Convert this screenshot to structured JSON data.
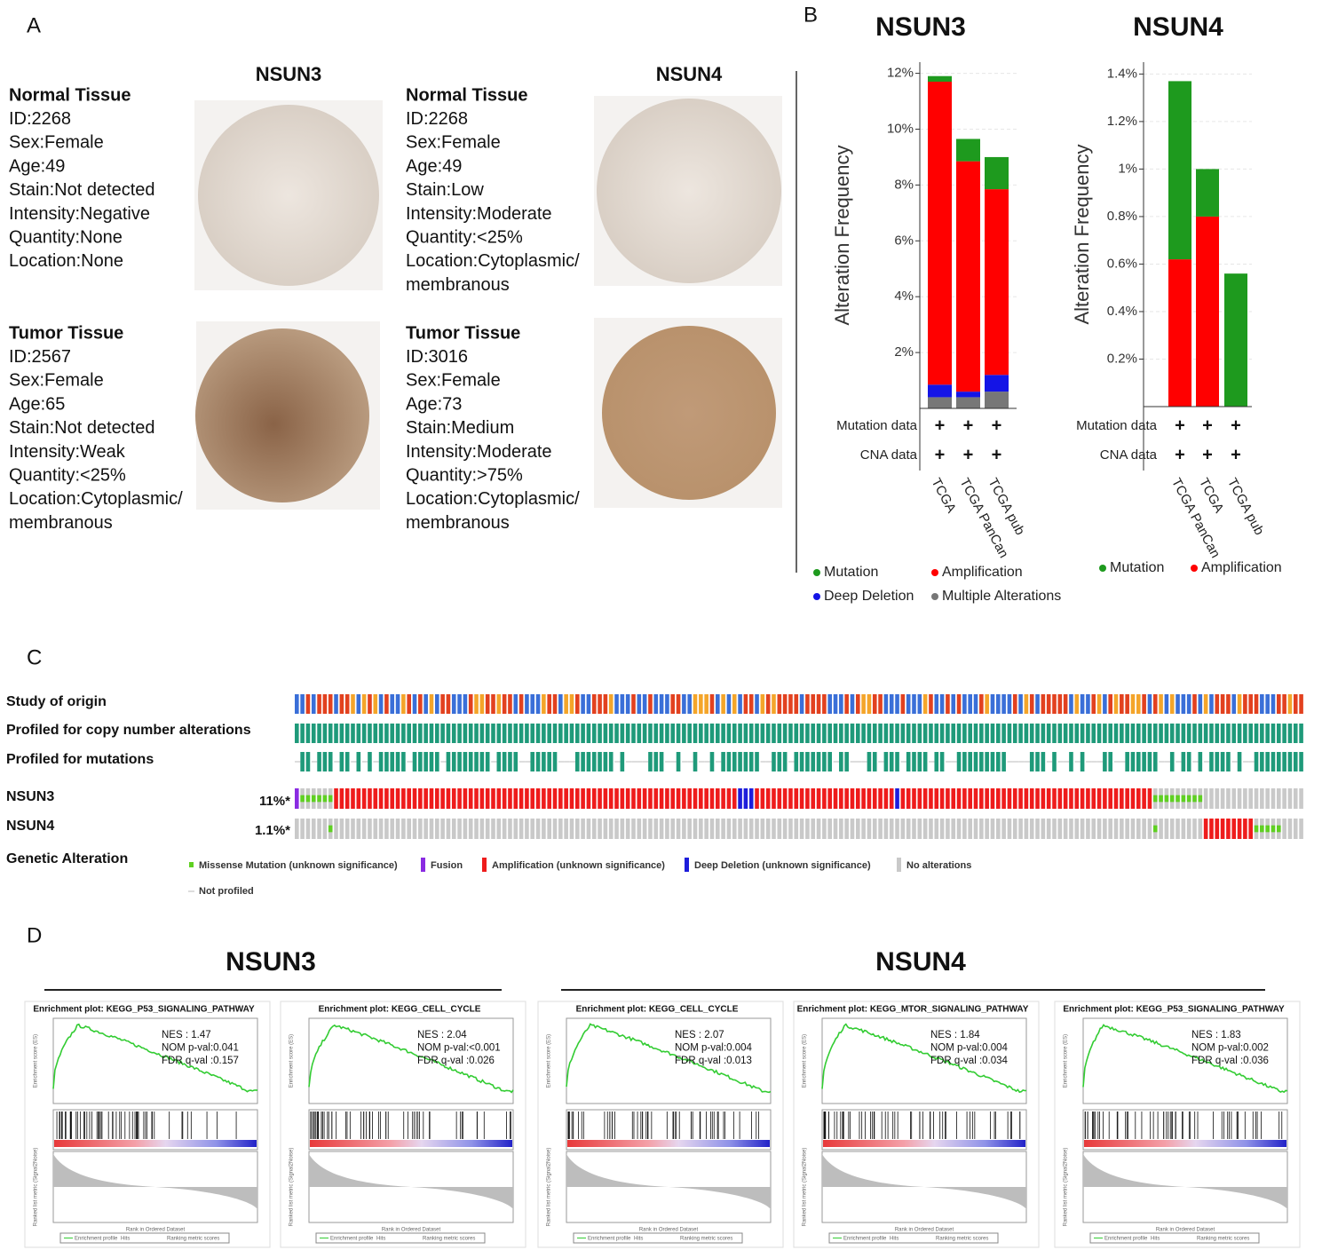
{
  "panel_labels": [
    "A",
    "B",
    "C",
    "D"
  ],
  "panel_a": {
    "genes": [
      "NSUN3",
      "NSUN4"
    ],
    "samples": [
      {
        "heading": "Normal Tissue",
        "lines": [
          "ID:2268",
          "Sex:Female",
          "Age:49",
          "Stain:Not detected",
          "Intensity:Negative",
          "Quantity:None",
          "Location:None"
        ]
      },
      {
        "heading": "Tumor Tissue",
        "lines": [
          "ID:2567",
          "Sex:Female",
          "Age:65",
          "Stain:Not detected",
          "Intensity:Weak",
          "Quantity:<25%",
          "Location:Cytoplasmic/",
          "membranous"
        ]
      },
      {
        "heading": "Normal Tissue",
        "lines": [
          "ID:2268",
          "Sex:Female",
          "Age:49",
          "Stain:Low",
          "Intensity:Moderate",
          "Quantity:<25%",
          "Location:Cytoplasmic/",
          "membranous"
        ]
      },
      {
        "heading": "Tumor Tissue",
        "lines": [
          "ID:3016",
          "Sex:Female",
          "Age:73",
          "Stain:Medium",
          "Intensity:Moderate",
          "Quantity:>75%",
          "Location:Cytoplasmic/",
          "membranous"
        ]
      }
    ]
  },
  "chart_data": [
    {
      "type": "stacked_bar",
      "title": "NSUN3",
      "ylabel": "Alteration Frequency",
      "categories": [
        "TCGA",
        "TCGA PanCan",
        "TCGA pub"
      ],
      "series": [
        {
          "name": "Multiple Alterations",
          "color": "#777777",
          "values": [
            0.4,
            0.4,
            0.6
          ]
        },
        {
          "name": "Deep Deletion",
          "color": "#1414e6",
          "values": [
            0.45,
            0.2,
            0.6
          ]
        },
        {
          "name": "Amplification",
          "color": "#ff0000",
          "values": [
            10.85,
            8.25,
            6.65
          ]
        },
        {
          "name": "Mutation",
          "color": "#1e9a1e",
          "values": [
            0.2,
            0.8,
            1.15
          ]
        }
      ],
      "legend_order": [
        3,
        2,
        1,
        0
      ],
      "row_labels": [
        "Mutation data",
        "CNA data"
      ],
      "row_marker": "+",
      "ylim": [
        0,
        12.4
      ],
      "yticks": [
        {
          "value": 2,
          "label": "2%"
        },
        {
          "value": 4,
          "label": "4%"
        },
        {
          "value": 6,
          "label": "6%"
        },
        {
          "value": 8,
          "label": "8%"
        },
        {
          "value": 10,
          "label": "10%"
        },
        {
          "value": 12,
          "label": "12%"
        }
      ],
      "grid": true
    },
    {
      "type": "stacked_bar",
      "title": "NSUN4",
      "ylabel": "Alteration Frequency",
      "categories": [
        "TCGA PanCan",
        "TCGA",
        "TCGA pub"
      ],
      "series": [
        {
          "name": "Amplification",
          "color": "#ff0000",
          "values": [
            0.62,
            0.8,
            0
          ]
        },
        {
          "name": "Mutation",
          "color": "#1e9a1e",
          "values": [
            0.75,
            0.2,
            0.56
          ]
        }
      ],
      "legend_order": [
        1,
        0
      ],
      "row_labels": [
        "Mutation data",
        "CNA data"
      ],
      "row_marker": "+",
      "ylim": [
        0,
        1.45
      ],
      "yticks": [
        {
          "value": 0.2,
          "label": "0.2%"
        },
        {
          "value": 0.4,
          "label": "0.4%"
        },
        {
          "value": 0.6,
          "label": "0.6%"
        },
        {
          "value": 0.8,
          "label": "0.8%"
        },
        {
          "value": 1,
          "label": "1%"
        },
        {
          "value": 1.2,
          "label": "1.2%"
        },
        {
          "value": 1.4,
          "label": "1.4%"
        }
      ],
      "grid": true
    }
  ],
  "panel_c": {
    "tracks": [
      "Study of origin",
      "Profiled for copy number alterations",
      "Profiled for mutations"
    ],
    "genes": [
      {
        "name": "NSUN3",
        "percent": "11%*",
        "runs": [
          {
            "alteration": "Fusion",
            "count": 1
          },
          {
            "alteration": "Missense Mutation (unknown significance)",
            "count": 6
          },
          {
            "alteration": "Amplification (unknown significance)",
            "count": 72
          },
          {
            "alteration": "Deep Deletion (unknown significance)",
            "count": 3
          },
          {
            "alteration": "Amplification (unknown significance)",
            "count": 25
          },
          {
            "alteration": "Deep Deletion (unknown significance)",
            "count": 1
          },
          {
            "alteration": "Amplification (unknown significance)",
            "count": 45
          },
          {
            "alteration": "Missense Mutation (unknown significance)",
            "count": 9
          },
          {
            "alteration": "No alterations",
            "count": 18
          }
        ]
      },
      {
        "name": "NSUN4",
        "percent": "1.1%*",
        "runs": [
          {
            "alteration": "No alterations",
            "count": 6
          },
          {
            "alteration": "Missense Mutation (unknown significance)",
            "count": 1
          },
          {
            "alteration": "No alterations",
            "count": 146
          },
          {
            "alteration": "Missense Mutation (unknown significance)",
            "count": 1
          },
          {
            "alteration": "No alterations",
            "count": 8
          },
          {
            "alteration": "Amplification (unknown significance)",
            "count": 9
          },
          {
            "alteration": "Missense Mutation (unknown significance)",
            "count": 5
          },
          {
            "alteration": "No alterations",
            "count": 4
          }
        ]
      }
    ],
    "legend_title": "Genetic Alteration",
    "legend": [
      {
        "label": "Missense Mutation (unknown significance)",
        "color": "#5fd022"
      },
      {
        "label": "Fusion",
        "color": "#8a2be2"
      },
      {
        "label": "Amplification (unknown significance)",
        "color": "#ee1c1c"
      },
      {
        "label": "Deep Deletion (unknown significance)",
        "color": "#1d1ddb"
      },
      {
        "label": "No alterations",
        "color": "#c9c9c9"
      }
    ],
    "not_profiled": "Not profiled"
  },
  "panel_d": {
    "xlabel": "Rank in Ordered Dataset",
    "es_label": "Enrichment score (ES)",
    "metric_label": "Ranked list metric (Signal2Noise)",
    "legend": [
      "Enrichment profile",
      "Hits",
      "Ranking metric scores"
    ],
    "groups": [
      {
        "title": "NSUN3",
        "plots": [
          {
            "title": "Enrichment plot: KEGG_P53_SIGNALING_PATHWAY",
            "stats": [
              "NES : 1.47",
              "NOM p-val:0.041",
              "FDR q-val :0.157"
            ]
          },
          {
            "title": "Enrichment plot: KEGG_CELL_CYCLE",
            "stats": [
              "NES : 2.04",
              "NOM p-val:<0.001",
              "FDR q-val :0.026"
            ]
          }
        ]
      },
      {
        "title": "NSUN4",
        "plots": [
          {
            "title": "Enrichment plot: KEGG_CELL_CYCLE",
            "stats": [
              "NES : 2.07",
              "NOM p-val:0.004",
              "FDR q-val :0.013"
            ]
          },
          {
            "title": "Enrichment plot: KEGG_MTOR_SIGNALING_PATHWAY",
            "stats": [
              "NES : 1.84",
              "NOM p-val:0.004",
              "FDR q-val :0.034"
            ]
          },
          {
            "title": "Enrichment plot: KEGG_P53_SIGNALING_PATHWAY",
            "stats": [
              "NES : 1.83",
              "NOM p-val:0.002",
              "FDR q-val :0.036"
            ]
          }
        ]
      }
    ]
  }
}
